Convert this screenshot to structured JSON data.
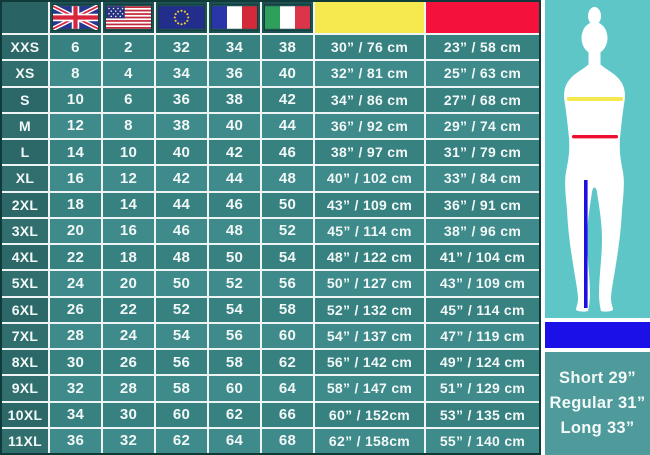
{
  "chart_data": {
    "type": "table",
    "title": "Women's clothing size conversion chart",
    "columns": [
      "size",
      "uk",
      "usa",
      "eu",
      "france",
      "italy",
      "chest",
      "waist"
    ],
    "header": {
      "corner": "",
      "flags": [
        "uk-flag",
        "usa-flag",
        "eu-flag",
        "france-flag",
        "italy-flag"
      ],
      "chest_swatch_color": "#f5e94f",
      "waist_swatch_color": "#f4113b"
    },
    "rows": [
      {
        "size": "XXS",
        "uk": "6",
        "usa": "2",
        "eu": "32",
        "france": "34",
        "italy": "38",
        "chest": "30” / 76 cm",
        "waist": "23” / 58 cm"
      },
      {
        "size": "XS",
        "uk": "8",
        "usa": "4",
        "eu": "34",
        "france": "36",
        "italy": "40",
        "chest": "32” / 81 cm",
        "waist": "25” / 63 cm"
      },
      {
        "size": "S",
        "uk": "10",
        "usa": "6",
        "eu": "36",
        "france": "38",
        "italy": "42",
        "chest": "34” / 86 cm",
        "waist": "27” / 68 cm"
      },
      {
        "size": "M",
        "uk": "12",
        "usa": "8",
        "eu": "38",
        "france": "40",
        "italy": "44",
        "chest": "36” / 92 cm",
        "waist": "29” / 74 cm"
      },
      {
        "size": "L",
        "uk": "14",
        "usa": "10",
        "eu": "40",
        "france": "42",
        "italy": "46",
        "chest": "38” / 97 cm",
        "waist": "31” / 79 cm"
      },
      {
        "size": "XL",
        "uk": "16",
        "usa": "12",
        "eu": "42",
        "france": "44",
        "italy": "48",
        "chest": "40” / 102 cm",
        "waist": "33” / 84 cm"
      },
      {
        "size": "2XL",
        "uk": "18",
        "usa": "14",
        "eu": "44",
        "france": "46",
        "italy": "50",
        "chest": "43” / 109 cm",
        "waist": "36” / 91 cm"
      },
      {
        "size": "3XL",
        "uk": "20",
        "usa": "16",
        "eu": "46",
        "france": "48",
        "italy": "52",
        "chest": "45” / 114 cm",
        "waist": "38” / 96 cm"
      },
      {
        "size": "4XL",
        "uk": "22",
        "usa": "18",
        "eu": "48",
        "france": "50",
        "italy": "54",
        "chest": "48” / 122 cm",
        "waist": "41” / 104 cm"
      },
      {
        "size": "5XL",
        "uk": "24",
        "usa": "20",
        "eu": "50",
        "france": "52",
        "italy": "56",
        "chest": "50” / 127 cm",
        "waist": "43” / 109 cm"
      },
      {
        "size": "6XL",
        "uk": "26",
        "usa": "22",
        "eu": "52",
        "france": "54",
        "italy": "58",
        "chest": "52” / 132 cm",
        "waist": "45” / 114 cm"
      },
      {
        "size": "7XL",
        "uk": "28",
        "usa": "24",
        "eu": "54",
        "france": "56",
        "italy": "60",
        "chest": "54” / 137 cm",
        "waist": "47” / 119 cm"
      },
      {
        "size": "8XL",
        "uk": "30",
        "usa": "26",
        "eu": "56",
        "france": "58",
        "italy": "62",
        "chest": "56” / 142 cm",
        "waist": "49” / 124 cm"
      },
      {
        "size": "9XL",
        "uk": "32",
        "usa": "28",
        "eu": "58",
        "france": "60",
        "italy": "64",
        "chest": "58” / 147 cm",
        "waist": "51” / 129 cm"
      },
      {
        "size": "10XL",
        "uk": "34",
        "usa": "30",
        "eu": "60",
        "france": "62",
        "italy": "66",
        "chest": "60” / 152cm",
        "waist": "53” / 135 cm"
      },
      {
        "size": "11XL",
        "uk": "36",
        "usa": "32",
        "eu": "62",
        "france": "64",
        "italy": "68",
        "chest": "62” / 158cm",
        "waist": "55” / 140 cm"
      }
    ]
  },
  "side_panel": {
    "figure": {
      "icon": "female-body-silhouette-icon",
      "background_color": "#5fc6c8",
      "chest_line_color": "#f5e94f",
      "waist_line_color": "#ee1031",
      "inseam_line_color": "#2010e0"
    },
    "inseam_bar_color": "#1c10e8",
    "lengths": [
      "Short 29”",
      "Regular 31”",
      "Long 33”"
    ]
  }
}
